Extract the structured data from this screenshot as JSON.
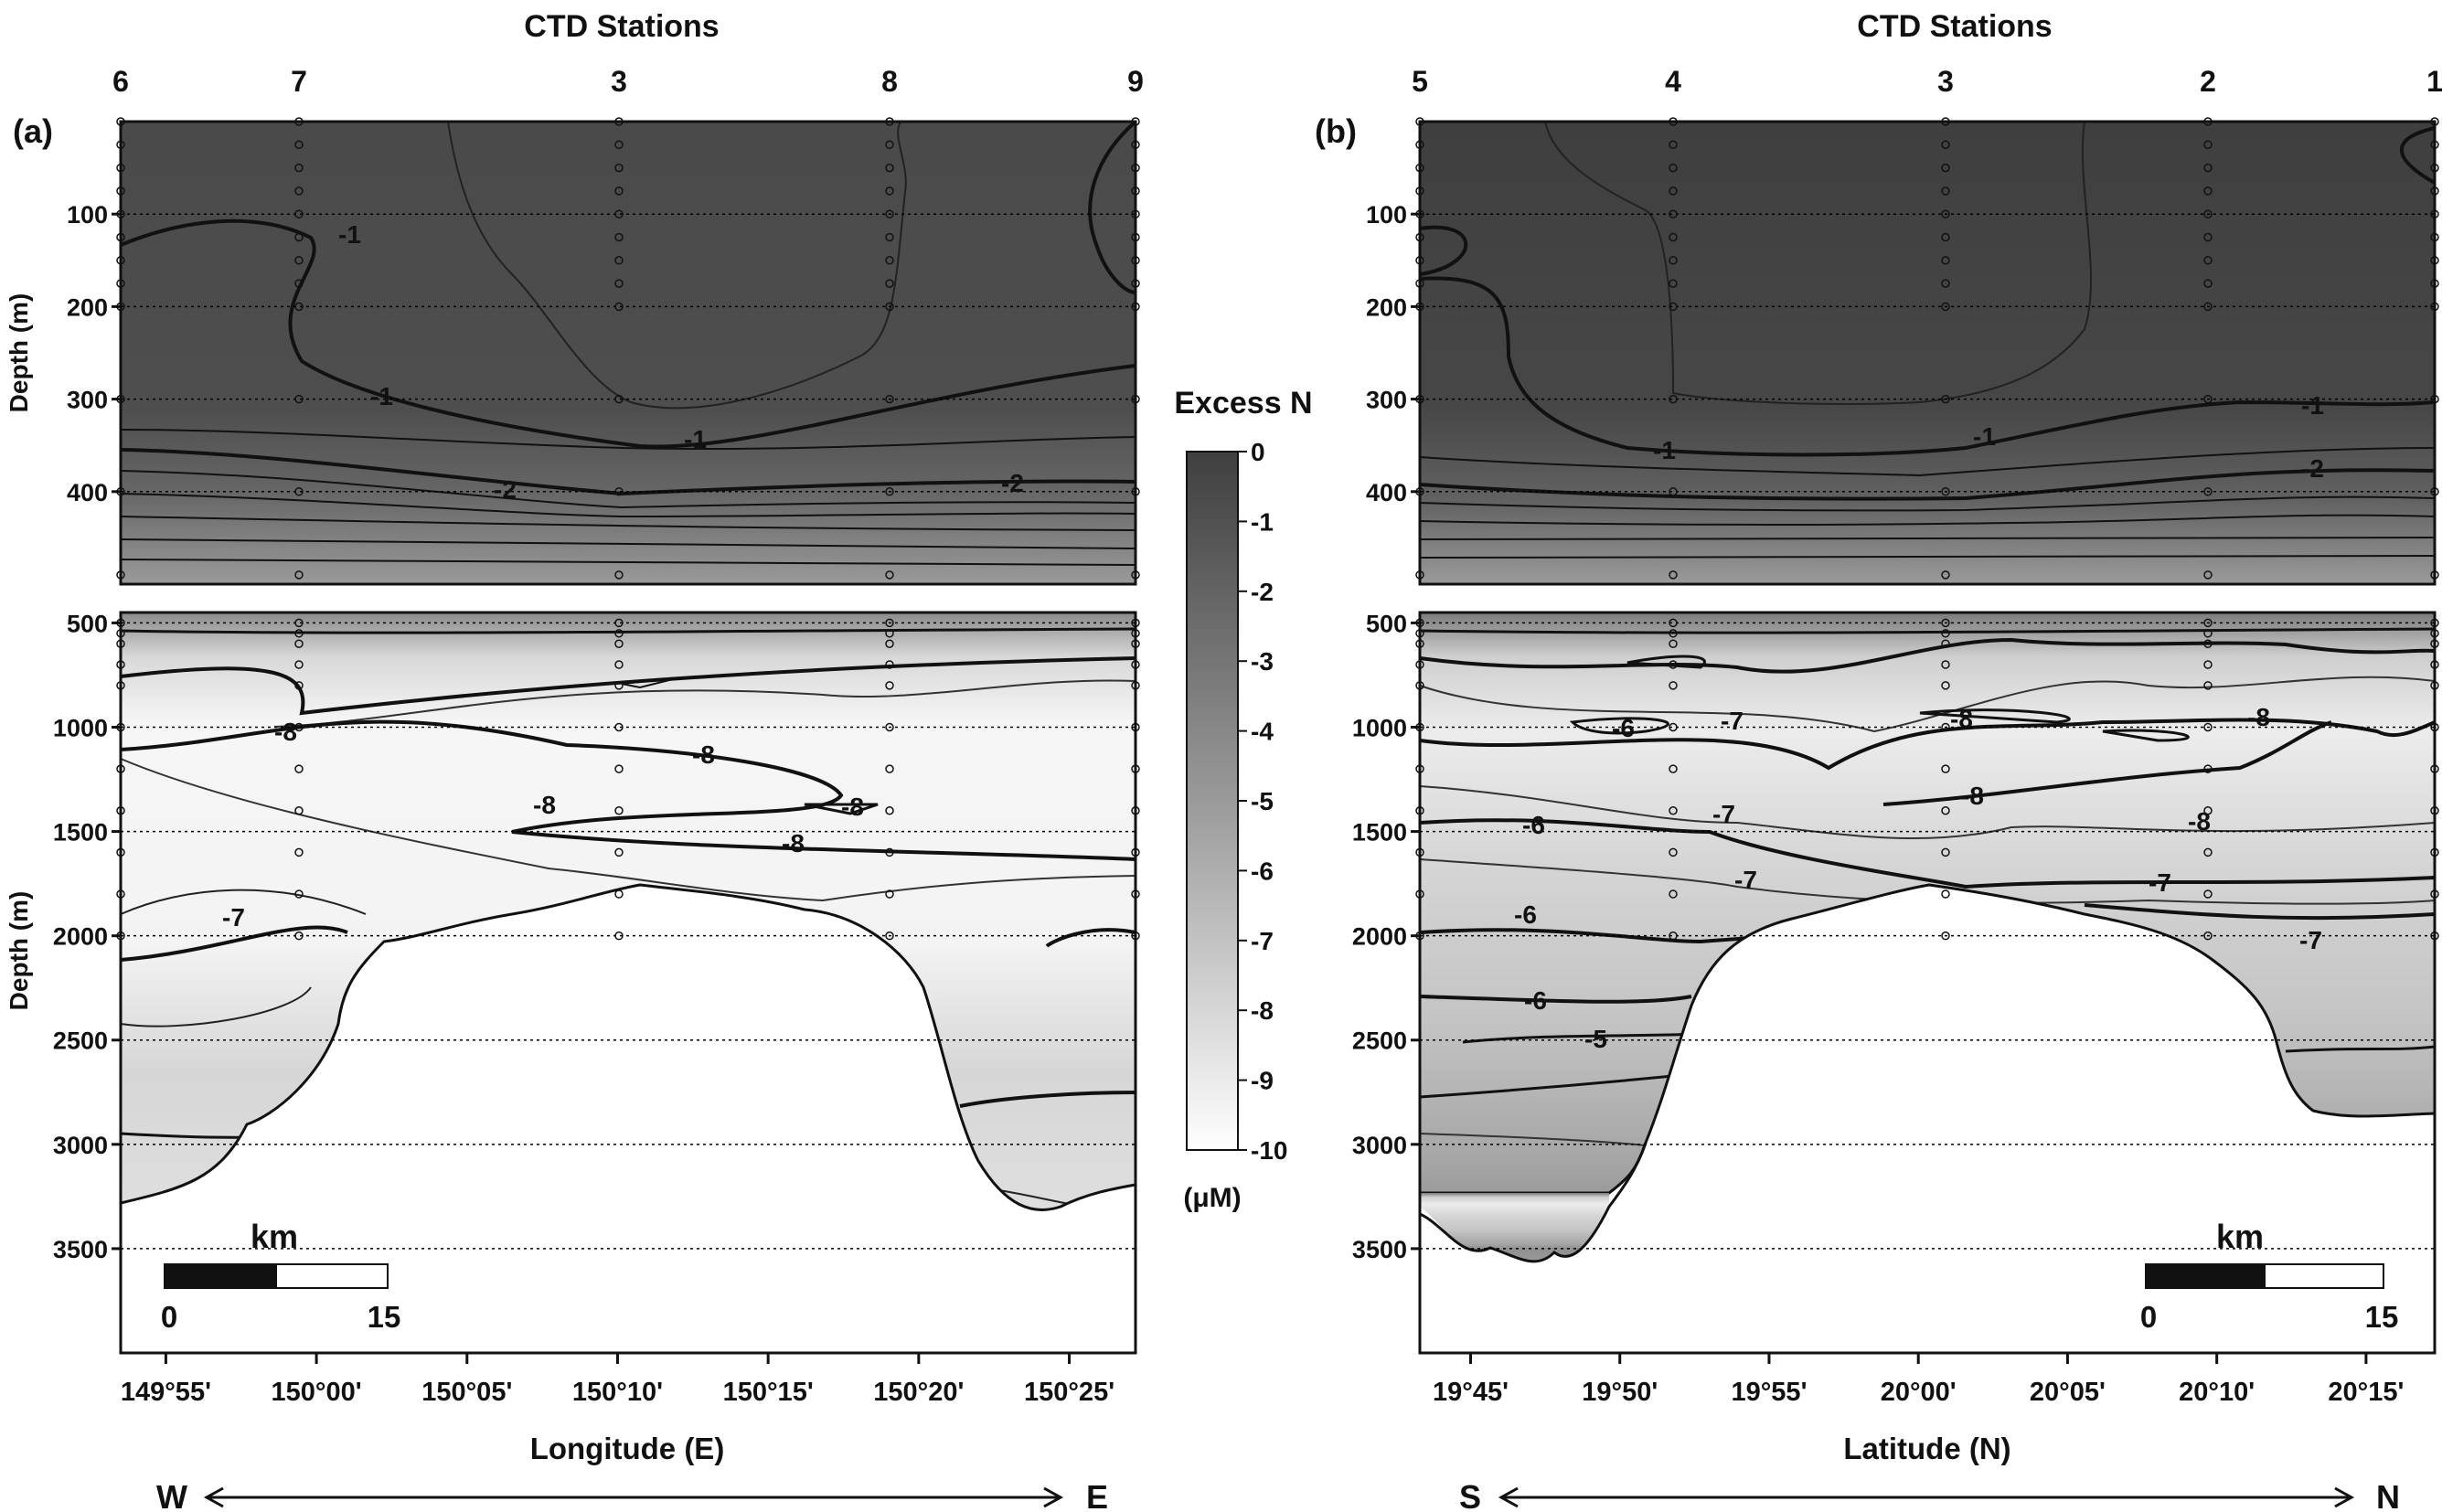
{
  "chart_data": [
    {
      "type": "heatmap",
      "panel_label": "(a)",
      "stations_title": "CTD Stations",
      "stations": [
        {
          "id": "6",
          "lon": "149°53.5'"
        },
        {
          "id": "7",
          "lon": "149°58.8'"
        },
        {
          "id": "3",
          "lon": "150°09.9'"
        },
        {
          "id": "8",
          "lon": "150°19.0'"
        },
        {
          "id": "9",
          "lon": "150°27.2'"
        }
      ],
      "xlabel": "Longitude (E)",
      "x_ticks": [
        "149°55'",
        "150°00'",
        "150°05'",
        "150°10'",
        "150°15'",
        "150°20'",
        "150°25'"
      ],
      "x_tick_minutes": [
        5,
        10,
        15,
        20,
        25,
        30,
        35
      ],
      "x_range_minutes": [
        3.5,
        37.2
      ],
      "ylabel_top": "Depth (m)",
      "ylabel_bottom": "Depth (m)",
      "y_ticks_top": [
        "100",
        "200",
        "300",
        "400"
      ],
      "y_ticks_bottom": [
        "500",
        "1000",
        "1500",
        "2000",
        "2500",
        "3000",
        "3500"
      ],
      "y_range_top_m": [
        0,
        500
      ],
      "y_range_bottom_m": [
        450,
        4000
      ],
      "contour_labels": [
        "-1",
        "-1",
        "-1",
        "-2",
        "-2",
        "-8",
        "-8",
        "-8",
        "-8",
        "-8",
        "-7"
      ],
      "scale_bar": {
        "title": "km",
        "min": "0",
        "max": "15"
      },
      "direction": {
        "left": "W",
        "right": "E"
      }
    },
    {
      "type": "heatmap",
      "panel_label": "(b)",
      "stations_title": "CTD Stations",
      "stations": [
        {
          "id": "5",
          "lat": "19°43.5'"
        },
        {
          "id": "4",
          "lat": "19°52'"
        },
        {
          "id": "3",
          "lat": "20°00.9'"
        },
        {
          "id": "2",
          "lat": "20°09.5'"
        },
        {
          "id": "1",
          "lat": "20°17.2'"
        }
      ],
      "xlabel": "Latitude (N)",
      "x_ticks": [
        "19°45'",
        "19°50'",
        "19°55'",
        "20°00'",
        "20°05'",
        "20°10'",
        "20°15'"
      ],
      "x_tick_minutes": [
        45,
        50,
        55,
        60,
        65,
        70,
        75
      ],
      "x_range_minutes": [
        43.3,
        77.3
      ],
      "ylabel_top": "",
      "ylabel_bottom": "",
      "y_ticks_top": [
        "100",
        "200",
        "300",
        "400"
      ],
      "y_ticks_bottom": [
        "500",
        "1000",
        "1500",
        "2000",
        "2500",
        "3000",
        "3500"
      ],
      "y_range_top_m": [
        0,
        500
      ],
      "y_range_bottom_m": [
        450,
        4000
      ],
      "contour_labels": [
        "-1",
        "-1",
        "-1",
        "-2",
        "-6",
        "-7",
        "-8",
        "-8",
        "-7",
        "-8",
        "-8",
        "-6",
        "-7",
        "-7",
        "-7",
        "-6",
        "-6",
        "-5",
        "-7"
      ],
      "scale_bar": {
        "title": "km",
        "min": "0",
        "max": "15"
      },
      "direction": {
        "left": "S",
        "right": "N"
      }
    }
  ],
  "colorbar": {
    "title": "Excess N",
    "unit": "(μM)",
    "ticks": [
      "0",
      "-1",
      "-2",
      "-3",
      "-4",
      "-5",
      "-6",
      "-7",
      "-8",
      "-9",
      "-10"
    ],
    "range": [
      0,
      -10
    ],
    "color_top": "#3f3f3f",
    "color_bottom": "#ffffff"
  }
}
